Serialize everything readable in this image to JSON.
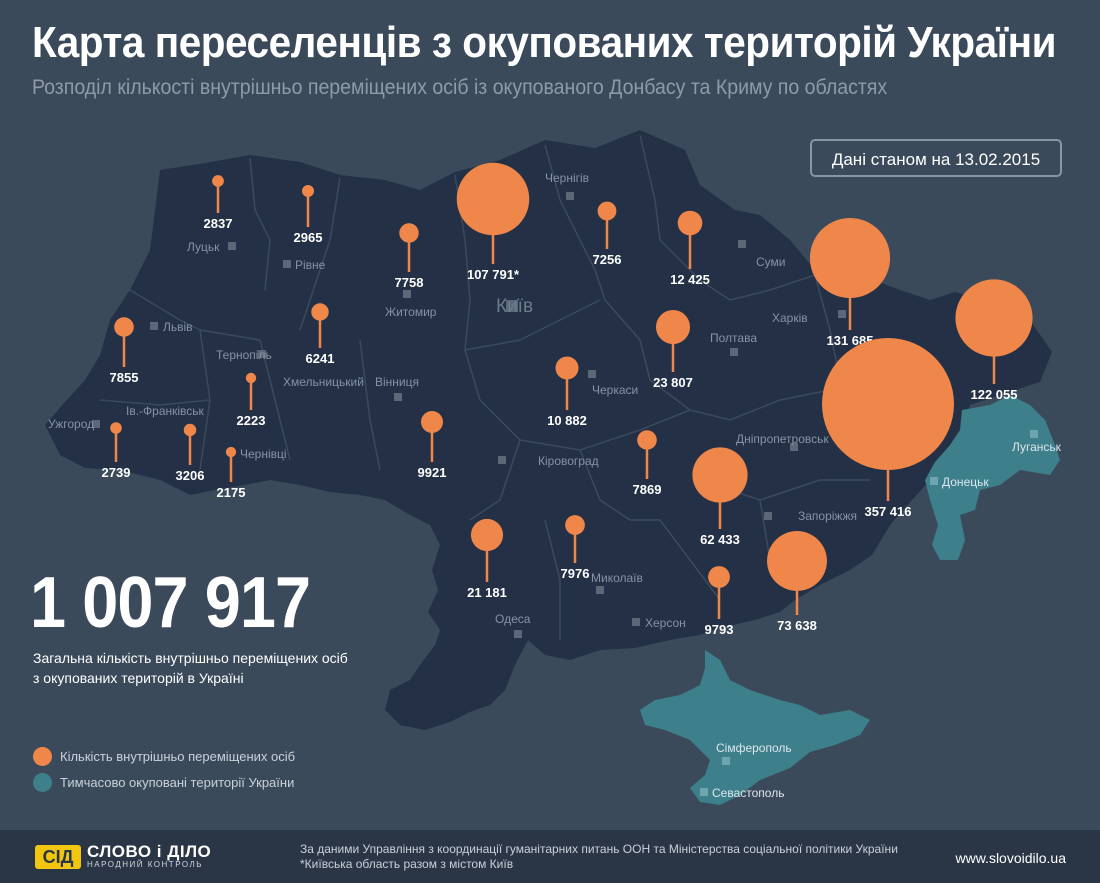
{
  "header": {
    "title": "Карта переселенців з окупованих територій України",
    "subtitle": "Розподіл кількості внутрішньо переміщених осіб із окупованого Донбасу та Криму по областях",
    "date_note": "Дані станом на 13.02.2015"
  },
  "summary": {
    "total": "1 007 917",
    "description_line1": "Загальна кількість внутрішньо переміщених осіб",
    "description_line2": "з окупованих територій в Україні"
  },
  "legend": {
    "displaced_label": "Кількість внутрішньо переміщених осіб",
    "occupied_label": "Тимчасово окуповані території України"
  },
  "colors": {
    "background": "#3b4a5b",
    "map_fill": "#243046",
    "occupied_fill": "#3d7f8a",
    "marker": "#f0874a"
  },
  "regions": [
    {
      "name": "Луцьк",
      "value": "2837",
      "num": 2837
    },
    {
      "name": "Рівне",
      "value": "2965",
      "num": 2965
    },
    {
      "name": "Житомир",
      "value": "7758",
      "num": 7758
    },
    {
      "name": "Київ",
      "value": "107 791*",
      "num": 107791
    },
    {
      "name": "Чернігів",
      "value": "7256",
      "num": 7256
    },
    {
      "name": "Суми",
      "value": "12 425",
      "num": 12425
    },
    {
      "name": "Харків",
      "value": "131 685",
      "num": 131685
    },
    {
      "name": "Луганськ",
      "value": "122 055",
      "num": 122055
    },
    {
      "name": "Львів",
      "value": "7855",
      "num": 7855
    },
    {
      "name": "Хмельницький",
      "value": "6241",
      "num": 6241
    },
    {
      "name": "Тернопіль",
      "value": "2223",
      "num": 2223
    },
    {
      "name": "Ужгород",
      "value": "2739",
      "num": 2739
    },
    {
      "name": "Ів.-Франківськ",
      "value": "3206",
      "num": 3206
    },
    {
      "name": "Чернівці",
      "value": "2175",
      "num": 2175
    },
    {
      "name": "Вінниця",
      "value": "9921",
      "num": 9921
    },
    {
      "name": "Черкаси",
      "value": "10 882",
      "num": 10882
    },
    {
      "name": "Полтава",
      "value": "23 807",
      "num": 23807
    },
    {
      "name": "Кіровоград",
      "value": "7869",
      "num": 7869
    },
    {
      "name": "Дніпропетровськ",
      "value": "62 433",
      "num": 62433
    },
    {
      "name": "Донецьк",
      "value": "357 416",
      "num": 357416
    },
    {
      "name": "Одеса",
      "value": "21 181",
      "num": 21181
    },
    {
      "name": "Миколаїв",
      "value": "7976",
      "num": 7976
    },
    {
      "name": "Херсон",
      "value": "9793",
      "num": 9793
    },
    {
      "name": "Запоріжжя",
      "value": "73 638",
      "num": 73638
    }
  ],
  "crimea_cities": [
    "Сімферополь",
    "Севастополь"
  ],
  "footer": {
    "logo_mark": "СІД",
    "logo_name": "СЛОВО і ДІЛО",
    "logo_tagline": "НАРОДНИЙ КОНТРОЛЬ",
    "source_line1": "За даними Управління з координації гуманітарних питань ООН та Міністерства соціальної політики України",
    "source_line2": "*Київська область разом з містом Київ",
    "website": "www.slovoidilo.ua"
  }
}
